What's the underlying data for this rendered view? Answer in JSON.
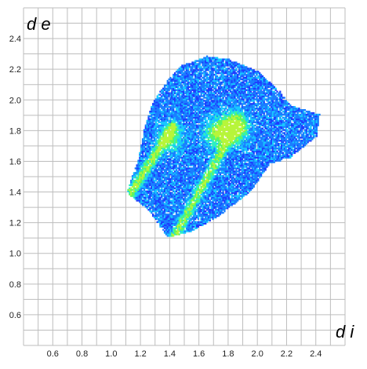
{
  "chart_data": {
    "type": "heatmap",
    "title": "",
    "xlabel": "d i",
    "ylabel": "d e",
    "xlim": [
      0.4,
      2.6
    ],
    "ylim": [
      0.4,
      2.6
    ],
    "grid": true,
    "x_ticks": [
      "0.6",
      "0.8",
      "1.0",
      "1.2",
      "1.4",
      "1.6",
      "1.8",
      "2.0",
      "2.2",
      "2.4"
    ],
    "y_ticks": [
      "0.6",
      "0.8",
      "1.0",
      "1.2",
      "1.4",
      "1.6",
      "1.8",
      "2.0",
      "2.2",
      "2.4"
    ],
    "colormap": [
      "#1e3cff",
      "#1a7fff",
      "#18c8ff",
      "#2ff0c0",
      "#5ff55f",
      "#b7f53a"
    ],
    "cell_size": 0.01,
    "region": {
      "outline": [
        [
          1.1,
          1.39
        ],
        [
          1.25,
          1.28
        ],
        [
          1.38,
          1.1
        ],
        [
          1.55,
          1.14
        ],
        [
          1.75,
          1.25
        ],
        [
          1.95,
          1.4
        ],
        [
          2.08,
          1.58
        ],
        [
          2.22,
          1.62
        ],
        [
          2.4,
          1.76
        ],
        [
          2.42,
          1.9
        ],
        [
          2.22,
          1.96
        ],
        [
          2.15,
          2.05
        ],
        [
          2.0,
          2.18
        ],
        [
          1.8,
          2.26
        ],
        [
          1.65,
          2.28
        ],
        [
          1.48,
          2.22
        ],
        [
          1.38,
          2.12
        ],
        [
          1.28,
          1.98
        ],
        [
          1.22,
          1.8
        ],
        [
          1.18,
          1.6
        ],
        [
          1.12,
          1.45
        ]
      ],
      "hotspots": [
        {
          "x": 1.84,
          "y": 1.82,
          "weight": 1.0
        },
        {
          "x": 1.72,
          "y": 1.78,
          "weight": 0.6
        },
        {
          "x": 1.4,
          "y": 1.75,
          "weight": 0.45
        }
      ],
      "spikes": [
        {
          "from": [
            1.13,
            1.39
          ],
          "to": [
            1.42,
            1.82
          ],
          "weight": 0.8
        },
        {
          "from": [
            1.43,
            1.11
          ],
          "to": [
            1.82,
            1.78
          ],
          "weight": 0.75
        }
      ]
    }
  }
}
